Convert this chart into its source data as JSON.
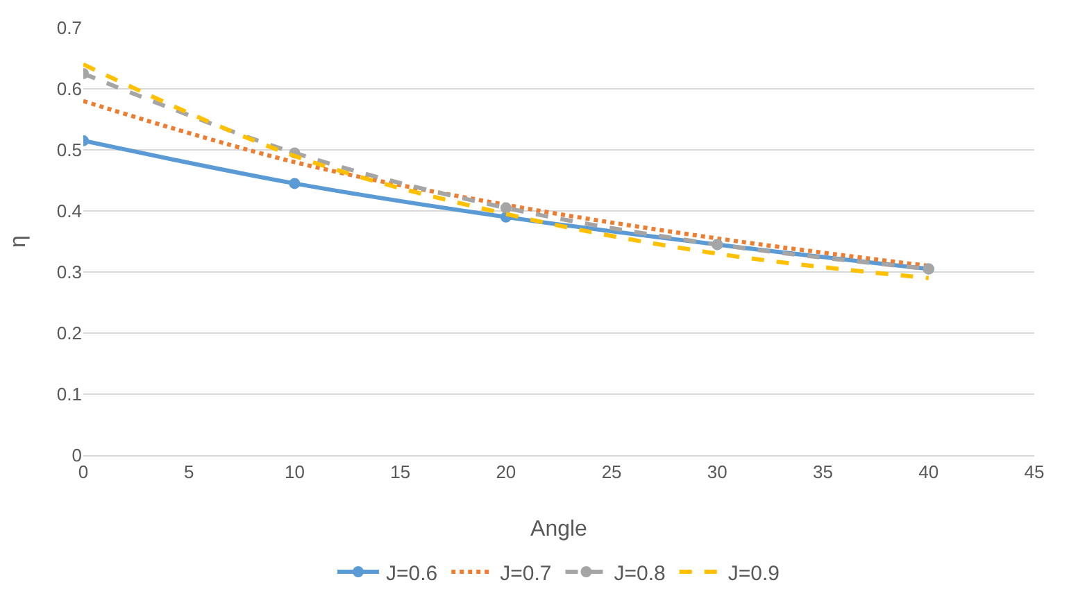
{
  "chart_data": {
    "type": "line",
    "xlabel": "Angle",
    "ylabel": "η",
    "x": [
      0,
      10,
      20,
      30,
      40
    ],
    "series": [
      {
        "name": "J=0.6",
        "color": "#5b9bd5",
        "values": [
          0.515,
          0.445,
          0.39,
          0.345,
          0.305
        ],
        "marker": "circle",
        "line_style": "solid"
      },
      {
        "name": "J=0.7",
        "color": "#ed7d31",
        "values": [
          0.58,
          0.48,
          0.41,
          0.355,
          0.31
        ],
        "marker": "none",
        "line_style": "dotted"
      },
      {
        "name": "J=0.8",
        "color": "#a5a5a5",
        "values": [
          0.625,
          0.495,
          0.405,
          0.345,
          0.305
        ],
        "marker": "circle",
        "line_style": "dashed"
      },
      {
        "name": "J=0.9",
        "color": "#ffc000",
        "values": [
          0.64,
          0.49,
          0.395,
          0.33,
          0.29
        ],
        "marker": "none",
        "line_style": "dashed"
      }
    ],
    "xlim": [
      0,
      45
    ],
    "xticks": [
      0,
      5,
      10,
      15,
      20,
      25,
      30,
      35,
      40,
      45
    ],
    "ylim": [
      0,
      0.7
    ],
    "yticks": [
      0,
      0.1,
      0.2,
      0.3,
      0.4,
      0.5,
      0.6,
      0.7
    ],
    "grid": "y",
    "legend": "bottom"
  }
}
